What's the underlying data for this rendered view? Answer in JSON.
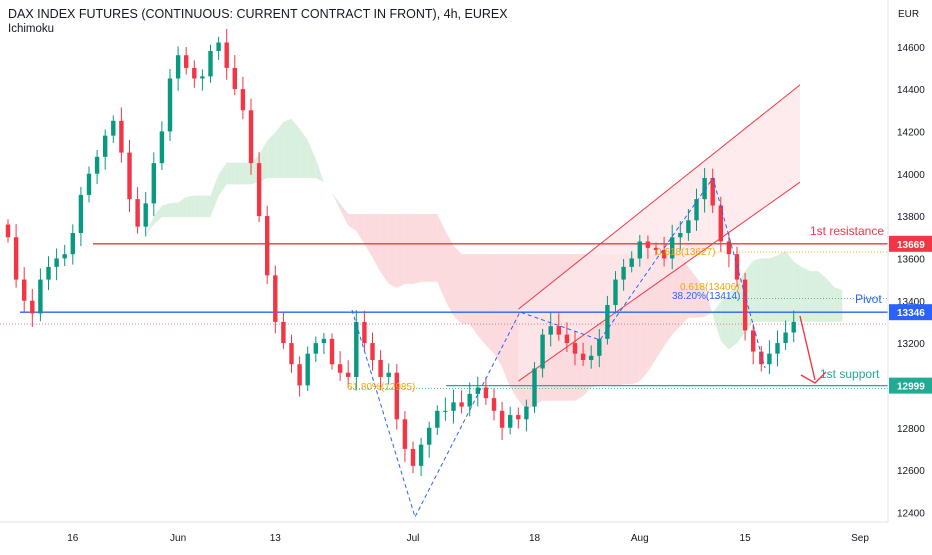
{
  "header": {
    "title": "DAX INDEX FUTURES (CONTINUOUS: CURRENT CONTRACT IN FRONT), 4h, EUREX",
    "indicator": "Ichimoku"
  },
  "chart_data": {
    "type": "candlestick",
    "currency": "EUR",
    "ylim": [
      12350,
      14750
    ],
    "y_ticks": [
      12400,
      12600,
      12800,
      13000,
      13200,
      13400,
      13600,
      13800,
      14000,
      14200,
      14400,
      14600
    ],
    "x_ticks": [
      {
        "label": "16",
        "idx": 8
      },
      {
        "label": "Jun",
        "idx": 21
      },
      {
        "label": "13",
        "idx": 33
      },
      {
        "label": "Jul",
        "idx": 50
      },
      {
        "label": "18",
        "idx": 65
      },
      {
        "label": "Aug",
        "idx": 78
      },
      {
        "label": "15",
        "idx": 91
      },
      {
        "label": "Sep",
        "idx": 107
      }
    ],
    "closes": [
      13700,
      13500,
      13400,
      13340,
      13500,
      13560,
      13600,
      13620,
      13720,
      13900,
      14000,
      14080,
      14180,
      14250,
      14100,
      13880,
      13750,
      13860,
      14050,
      14200,
      14450,
      14560,
      14500,
      14450,
      14460,
      14580,
      14620,
      14500,
      14400,
      14300,
      14050,
      13800,
      13520,
      13300,
      13200,
      13100,
      13000,
      13150,
      13200,
      13220,
      13100,
      13060,
      13040,
      13300,
      13200,
      13120,
      13040,
      13060,
      12840,
      12700,
      12620,
      12720,
      12800,
      12880,
      12880,
      12920,
      12900,
      12960,
      12990,
      12940,
      12880,
      12800,
      12860,
      12840,
      12900,
      13080,
      13240,
      13280,
      13240,
      13200,
      13150,
      13120,
      13140,
      13220,
      13380,
      13500,
      13560,
      13600,
      13680,
      13650,
      13640,
      13600,
      13700,
      13720,
      13780,
      13880,
      13980,
      13850,
      13680,
      13620,
      13500,
      13260,
      13160,
      13100,
      13150,
      13200,
      13250,
      13300
    ],
    "levels": [
      {
        "name": "1st resistance",
        "value": 13669,
        "label": "13669",
        "color": "#f23645"
      },
      {
        "name": "Pivot",
        "value": 13346,
        "label": "13346",
        "color": "#2962ff"
      },
      {
        "name": "1st support",
        "value": 12999,
        "label": "12999",
        "color": "#22ab94"
      }
    ],
    "fib_labels": [
      {
        "text": "61.80%(12985)",
        "color": "#f7a600"
      },
      {
        "text": "0.618(13406)",
        "color": "#f7a600"
      },
      {
        "text": "38.20%(13414)",
        "color": "#2962ff"
      },
      {
        "text": "0.618(13627)",
        "color": "#f7a600"
      }
    ],
    "channel": {
      "lower_start": 13020,
      "lower_end": 13960,
      "upper_start": 13360,
      "upper_end": 14420
    },
    "colors": {
      "up": "#089981",
      "down": "#f23645",
      "cloud_bear": "#fbd5d8",
      "cloud_bull": "#d4edd9",
      "channel_fill": "#fde6e8"
    }
  }
}
